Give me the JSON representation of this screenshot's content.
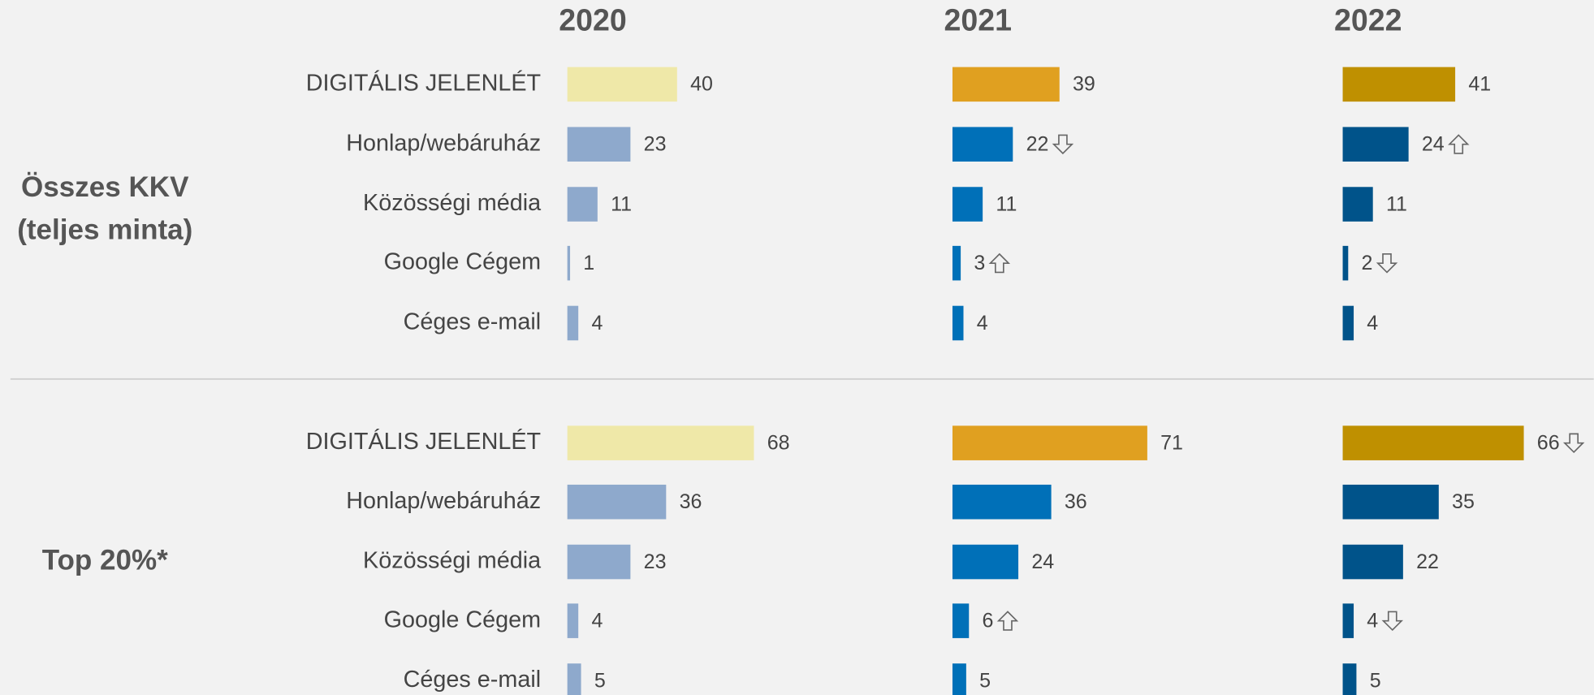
{
  "chart_data": {
    "type": "bar",
    "orientation": "horizontal",
    "years": [
      "2020",
      "2021",
      "2022"
    ],
    "categories": [
      "DIGITÁLIS JELENLÉT",
      "Honlap/webáruház",
      "Közösségi média",
      "Google Cégem",
      "Céges e-mail"
    ],
    "year_colors": [
      {
        "highlight": "#efe8a8",
        "color": "#8ea9cc"
      },
      {
        "highlight": "#e0a020",
        "color": "#0070b8"
      },
      {
        "highlight": "#bf9000",
        "color": "#00538a"
      }
    ],
    "groups": [
      {
        "label": [
          "Összes KKV",
          "(teljes minta)"
        ],
        "series": [
          {
            "name": "2020",
            "values": [
              40,
              23,
              11,
              1,
              4
            ],
            "trend": [
              null,
              null,
              null,
              null,
              null
            ]
          },
          {
            "name": "2021",
            "values": [
              39,
              22,
              11,
              3,
              4
            ],
            "trend": [
              null,
              "down",
              null,
              "up",
              null
            ]
          },
          {
            "name": "2022",
            "values": [
              41,
              24,
              11,
              2,
              4
            ],
            "trend": [
              null,
              "up",
              null,
              "down",
              null
            ]
          }
        ]
      },
      {
        "label": [
          "Top 20%*"
        ],
        "series": [
          {
            "name": "2020",
            "values": [
              68,
              36,
              23,
              4,
              5
            ],
            "trend": [
              null,
              null,
              null,
              null,
              null
            ]
          },
          {
            "name": "2021",
            "values": [
              71,
              36,
              24,
              6,
              5
            ],
            "trend": [
              null,
              null,
              null,
              "up",
              null
            ]
          },
          {
            "name": "2022",
            "values": [
              66,
              35,
              22,
              4,
              5
            ],
            "trend": [
              "down",
              null,
              null,
              "down",
              null
            ]
          }
        ]
      }
    ]
  }
}
